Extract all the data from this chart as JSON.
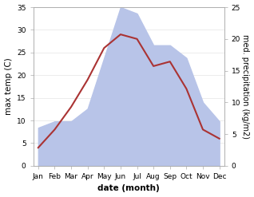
{
  "months": [
    "Jan",
    "Feb",
    "Mar",
    "Apr",
    "May",
    "Jun",
    "Jul",
    "Aug",
    "Sep",
    "Oct",
    "Nov",
    "Dec"
  ],
  "temperature": [
    4,
    8,
    13,
    19,
    26,
    29,
    28,
    22,
    23,
    17,
    8,
    6
  ],
  "precipitation_mm": [
    6,
    7,
    7,
    9,
    17,
    25,
    24,
    19,
    19,
    17,
    10,
    7
  ],
  "temp_color": "#aa3333",
  "precip_color": "#b8c4e8",
  "ylim_left": [
    0,
    35
  ],
  "ylim_right": [
    0,
    25
  ],
  "yticks_left": [
    0,
    5,
    10,
    15,
    20,
    25,
    30,
    35
  ],
  "yticks_right": [
    0,
    5,
    10,
    15,
    20,
    25
  ],
  "xlabel": "date (month)",
  "ylabel_left": "max temp (C)",
  "ylabel_right": "med. precipitation (kg/m2)",
  "bg_color": "#ffffff",
  "label_fontsize": 7.5,
  "tick_fontsize": 6.5
}
